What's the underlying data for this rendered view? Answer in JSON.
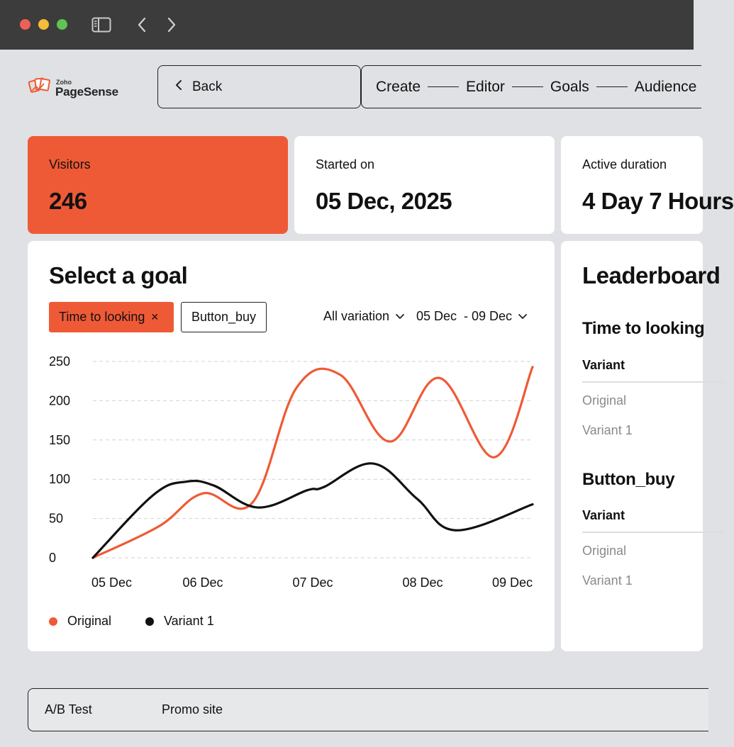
{
  "window": {
    "icons": [
      "sidebar-icon",
      "chevron-left-icon",
      "chevron-right-icon"
    ]
  },
  "header": {
    "logo_brand": "Zoho",
    "logo_product": "PageSense",
    "back_label": "Back",
    "steps": [
      "Create",
      "Editor",
      "Goals",
      "Audience"
    ]
  },
  "stats": [
    {
      "label": "Visitors",
      "value": "246"
    },
    {
      "label": "Started on",
      "value": "05 Dec, 2025"
    },
    {
      "label": "Active duration",
      "value": "4 Day 7 Hours"
    }
  ],
  "goal_panel": {
    "title": "Select a goal",
    "chips": [
      {
        "label": "Time to looking",
        "active": true
      },
      {
        "label": "Button_buy",
        "active": false
      }
    ],
    "variation_filter": "All variation",
    "date_filter": "05 Dec  - 09 Dec"
  },
  "chart_data": {
    "type": "line",
    "x": [
      "05 Dec",
      "06 Dec",
      "07 Dec",
      "08 Dec",
      "09 Dec"
    ],
    "yticks": [
      0,
      50,
      100,
      150,
      200,
      250
    ],
    "ylim": [
      0,
      250
    ],
    "grid": true,
    "legend": "bottom-left",
    "series": [
      {
        "name": "Original",
        "color": "#ef5a36",
        "points": [
          [
            0,
            0
          ],
          [
            0.6,
            40
          ],
          [
            1.0,
            82
          ],
          [
            1.45,
            70
          ],
          [
            1.85,
            216
          ],
          [
            2.25,
            233
          ],
          [
            2.7,
            148
          ],
          [
            3.15,
            229
          ],
          [
            3.65,
            128
          ],
          [
            4.0,
            243
          ]
        ]
      },
      {
        "name": "Variant 1",
        "color": "#111111",
        "points": [
          [
            0,
            0
          ],
          [
            0.55,
            80
          ],
          [
            0.85,
            97
          ],
          [
            1.1,
            92
          ],
          [
            1.5,
            64
          ],
          [
            1.95,
            86
          ],
          [
            2.1,
            90
          ],
          [
            2.55,
            120
          ],
          [
            2.95,
            75
          ],
          [
            3.3,
            35
          ],
          [
            4.0,
            68
          ]
        ]
      }
    ]
  },
  "leaderboard": {
    "title": "Leaderboard",
    "goals": [
      {
        "name": "Time to looking",
        "header": "Variant",
        "rows": [
          "Original",
          "Variant 1"
        ]
      },
      {
        "name": "Button_buy",
        "header": "Variant",
        "rows": [
          "Original",
          "Variant 1"
        ]
      }
    ]
  },
  "footer": {
    "type_label": "A/B Test",
    "site_label": "Promo site"
  },
  "colors": {
    "accent": "#ef5a36",
    "background": "#dfe1e4",
    "titlebar": "#3c3c3d"
  }
}
